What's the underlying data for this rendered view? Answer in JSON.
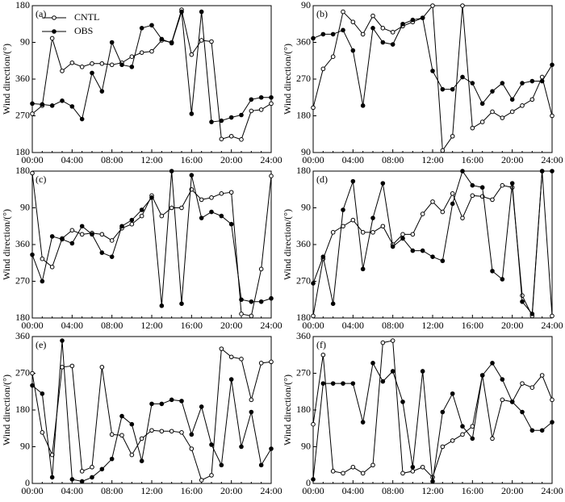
{
  "chart_data": [
    {
      "type": "line",
      "label": "(a)",
      "ylabel": "Wind direction/(°)",
      "categories": [
        "00:00",
        null,
        null,
        null,
        "04:00",
        null,
        null,
        null,
        "08:00",
        null,
        null,
        null,
        "12:00",
        null,
        null,
        null,
        "16:00",
        null,
        null,
        null,
        "20:00",
        null,
        null,
        null,
        "24:00"
      ],
      "ylim": [
        180,
        540
      ],
      "yticks": [
        180,
        270,
        360,
        {
          "value": 450,
          "label": "90"
        },
        {
          "value": 540,
          "label": "180"
        }
      ],
      "legend": "upper left",
      "series": [
        {
          "name": "CNTL",
          "color": "#000000",
          "marker": "open",
          "values": [
            275,
            295,
            460,
            380,
            400,
            390,
            398,
            398,
            395,
            400,
            415,
            425,
            428,
            455,
            450,
            530,
            420,
            455,
            452,
            213,
            220,
            212,
            282,
            285,
            300
          ]
        },
        {
          "name": "OBS",
          "color": "#000000",
          "marker": "filled",
          "values": [
            300,
            298,
            295,
            307,
            293,
            262,
            375,
            330,
            450,
            395,
            390,
            485,
            492,
            458,
            448,
            525,
            275,
            525,
            255,
            258,
            266,
            272,
            310,
            315,
            315
          ]
        }
      ]
    },
    {
      "type": "line",
      "label": "(b)",
      "ylabel": "Wind direction/(°)",
      "categories": [
        "00:00",
        null,
        null,
        null,
        "04:00",
        null,
        null,
        null,
        "08:00",
        null,
        null,
        null,
        "12:00",
        null,
        null,
        null,
        "16:00",
        null,
        null,
        null,
        "20:00",
        null,
        null,
        null,
        "24:00"
      ],
      "ylim": [
        90,
        450
      ],
      "yticks": [
        90,
        180,
        270,
        360,
        {
          "value": 450,
          "label": "90"
        }
      ],
      "series": [
        {
          "color": "#000000",
          "marker": "open",
          "values": [
            200,
            295,
            325,
            435,
            410,
            380,
            425,
            395,
            385,
            400,
            410,
            420,
            450,
            95,
            130,
            450,
            150,
            165,
            190,
            175,
            190,
            205,
            220,
            275,
            180
          ]
        },
        {
          "color": "#000000",
          "marker": "filled",
          "values": [
            370,
            380,
            380,
            390,
            340,
            205,
            395,
            360,
            355,
            405,
            415,
            420,
            290,
            245,
            245,
            275,
            260,
            210,
            240,
            260,
            220,
            260,
            265,
            265,
            305
          ]
        }
      ]
    },
    {
      "type": "line",
      "label": "(c)",
      "ylabel": "Wind direction/(°)",
      "categories": [
        "00:00",
        null,
        null,
        null,
        "04:00",
        null,
        null,
        null,
        "08:00",
        null,
        null,
        null,
        "12:00",
        null,
        null,
        null,
        "16:00",
        null,
        null,
        null,
        "20:00",
        null,
        null,
        null,
        "24:00"
      ],
      "ylim": [
        180,
        540
      ],
      "yticks": [
        180,
        270,
        360,
        {
          "value": 450,
          "label": "90"
        },
        {
          "value": 540,
          "label": "180"
        }
      ],
      "series": [
        {
          "color": "#000000",
          "marker": "open",
          "values": [
            535,
            325,
            305,
            375,
            395,
            385,
            388,
            385,
            370,
            400,
            410,
            430,
            480,
            430,
            450,
            450,
            495,
            470,
            475,
            485,
            488,
            190,
            185,
            300,
            528
          ]
        },
        {
          "color": "#000000",
          "marker": "filled",
          "values": [
            335,
            270,
            380,
            373,
            363,
            405,
            385,
            340,
            330,
            405,
            420,
            445,
            475,
            210,
            540,
            215,
            530,
            425,
            440,
            430,
            410,
            225,
            220,
            220,
            228
          ]
        }
      ]
    },
    {
      "type": "line",
      "label": "(d)",
      "ylabel": "Wind direction/(°)",
      "categories": [
        "00:00",
        null,
        null,
        null,
        "04:00",
        null,
        null,
        null,
        "08:00",
        null,
        null,
        null,
        "12:00",
        null,
        null,
        null,
        "16:00",
        null,
        null,
        null,
        "20:00",
        null,
        null,
        null,
        "24:00"
      ],
      "ylim": [
        180,
        540
      ],
      "yticks": [
        180,
        270,
        360,
        {
          "value": 450,
          "label": "90"
        },
        {
          "value": 540,
          "label": "180"
        }
      ],
      "series": [
        {
          "color": "#000000",
          "marker": "open",
          "values": [
            185,
            325,
            390,
            405,
            420,
            390,
            390,
            405,
            360,
            385,
            385,
            435,
            465,
            440,
            485,
            425,
            480,
            478,
            470,
            505,
            500,
            235,
            185,
            540,
            185
          ]
        },
        {
          "color": "#000000",
          "marker": "filled",
          "values": [
            265,
            330,
            215,
            445,
            515,
            300,
            425,
            510,
            355,
            375,
            345,
            345,
            330,
            320,
            460,
            540,
            505,
            500,
            295,
            275,
            510,
            220,
            190,
            540,
            540
          ]
        }
      ]
    },
    {
      "type": "line",
      "label": "(e)",
      "ylabel": "Wind direction/(°)",
      "categories": [
        "00:00",
        null,
        null,
        null,
        "04:00",
        null,
        null,
        null,
        "08:00",
        null,
        null,
        null,
        "12:00",
        null,
        null,
        null,
        "16:00",
        null,
        null,
        null,
        "20:00",
        null,
        null,
        null,
        "24:00"
      ],
      "ylim": [
        0,
        360
      ],
      "yticks": [
        0,
        90,
        180,
        270,
        360
      ],
      "series": [
        {
          "color": "#000000",
          "marker": "open",
          "values": [
            270,
            125,
            70,
            285,
            288,
            30,
            40,
            285,
            120,
            118,
            70,
            110,
            130,
            128,
            128,
            125,
            85,
            8,
            20,
            330,
            310,
            305,
            205,
            295,
            298
          ]
        },
        {
          "color": "#000000",
          "marker": "filled",
          "values": [
            240,
            220,
            15,
            350,
            10,
            5,
            15,
            35,
            60,
            165,
            145,
            55,
            195,
            195,
            205,
            202,
            120,
            188,
            95,
            45,
            255,
            90,
            175,
            45,
            85
          ]
        }
      ]
    },
    {
      "type": "line",
      "label": "(f)",
      "ylabel": "Wind direction/(°)",
      "categories": [
        "00:00",
        null,
        null,
        null,
        "04:00",
        null,
        null,
        null,
        "08:00",
        null,
        null,
        null,
        "12:00",
        null,
        null,
        null,
        "16:00",
        null,
        null,
        null,
        "20:00",
        null,
        null,
        null,
        "24:00"
      ],
      "ylim": [
        0,
        360
      ],
      "yticks": [
        0,
        90,
        180,
        270,
        360
      ],
      "series": [
        {
          "color": "#000000",
          "marker": "open",
          "values": [
            145,
            315,
            30,
            25,
            40,
            25,
            45,
            345,
            350,
            25,
            30,
            40,
            15,
            90,
            105,
            120,
            140,
            265,
            110,
            205,
            200,
            245,
            235,
            265,
            205
          ]
        },
        {
          "color": "#000000",
          "marker": "filled",
          "values": [
            10,
            245,
            245,
            245,
            245,
            150,
            295,
            250,
            275,
            200,
            40,
            275,
            5,
            175,
            220,
            140,
            110,
            265,
            295,
            255,
            200,
            175,
            130,
            130,
            150
          ]
        }
      ]
    }
  ]
}
